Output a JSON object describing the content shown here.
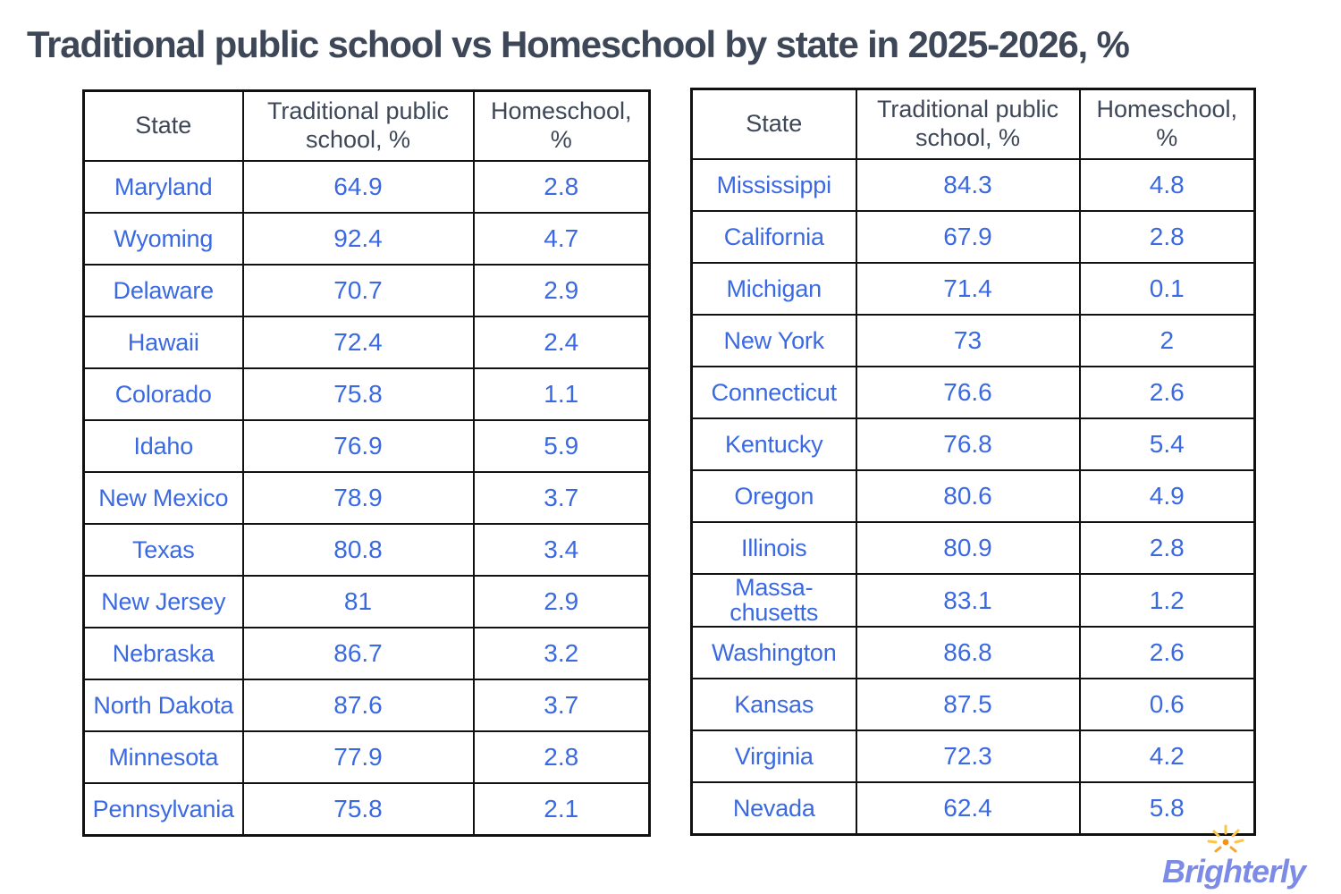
{
  "title": "Traditional public school vs Homeschool by state in 2025-2026, %",
  "colors": {
    "accent_blue": "#3A69E1",
    "heading_dark": "#3D4757",
    "table_border": "#111111",
    "logo_purple": "#7C8BE5",
    "logo_sun_orange": "#F6A42C",
    "logo_sun_yellow": "#FBC64A",
    "background": "#FFFFFF"
  },
  "logo": {
    "text": "Brighterly"
  },
  "chart_data": [
    {
      "type": "table",
      "name": "left-table",
      "columns": [
        "State",
        "Traditional public school, %",
        "Homeschool, %"
      ],
      "rows": [
        [
          "Maryland",
          "64.9",
          "2.8"
        ],
        [
          "Wyoming",
          "92.4",
          "4.7"
        ],
        [
          "Delaware",
          "70.7",
          "2.9"
        ],
        [
          "Hawaii",
          "72.4",
          "2.4"
        ],
        [
          "Colorado",
          "75.8",
          "1.1"
        ],
        [
          "Idaho",
          "76.9",
          "5.9"
        ],
        [
          "New Mexico",
          "78.9",
          "3.7"
        ],
        [
          "Texas",
          "80.8",
          "3.4"
        ],
        [
          "New Jersey",
          "81",
          "2.9"
        ],
        [
          "Nebraska",
          "86.7",
          "3.2"
        ],
        [
          "North Dakota",
          "87.6",
          "3.7"
        ],
        [
          "Minnesota",
          "77.9",
          "2.8"
        ],
        [
          "Pennsylvania",
          "75.8",
          "2.1"
        ]
      ]
    },
    {
      "type": "table",
      "name": "right-table",
      "columns": [
        "State",
        "Traditional public school, %",
        "Homeschool, %"
      ],
      "rows": [
        [
          "Mississippi",
          "84.3",
          "4.8"
        ],
        [
          "California",
          "67.9",
          "2.8"
        ],
        [
          "Michigan",
          "71.4",
          "0.1"
        ],
        [
          "New York",
          "73",
          "2"
        ],
        [
          "Connecticut",
          "76.6",
          "2.6"
        ],
        [
          "Kentucky",
          "76.8",
          "5.4"
        ],
        [
          "Oregon",
          "80.6",
          "4.9"
        ],
        [
          "Illinois",
          "80.9",
          "2.8"
        ],
        [
          "Massa-chusetts",
          "83.1",
          "1.2"
        ],
        [
          "Washington",
          "86.8",
          "2.6"
        ],
        [
          "Kansas",
          "87.5",
          "0.6"
        ],
        [
          "Virginia",
          "72.3",
          "4.2"
        ],
        [
          "Nevada",
          "62.4",
          "5.8"
        ]
      ]
    }
  ]
}
